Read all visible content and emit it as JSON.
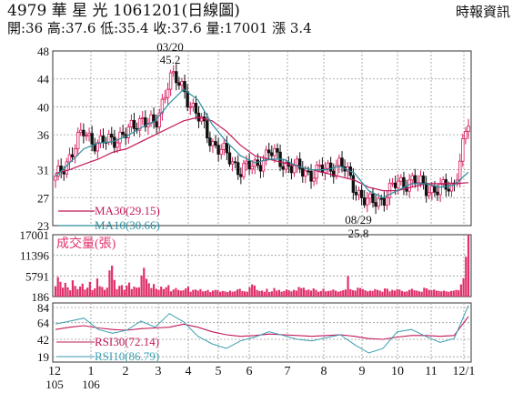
{
  "header": {
    "title": "4979 華 星 光 1061201(日線圖)",
    "source": "時報資訊",
    "stats": "開:36 高:37.6 低:35.4 收:37.6 量:17001 漲 3.4"
  },
  "colors": {
    "candle_up": "#d81b60",
    "candle_down": "#111111",
    "ma30": "#c2185b",
    "ma10": "#2a8fa0",
    "volume": "#e0306a",
    "rsi30": "#c2185b",
    "rsi10": "#3a9fb0"
  },
  "chart_data": [
    {
      "type": "candlestick",
      "title": "4979 華 星 光 1061201(日線圖)",
      "ylim": [
        23,
        48
      ],
      "yticks": [
        "48",
        "44",
        "40",
        "36",
        "31",
        "27",
        "23"
      ],
      "ytick_values": [
        48,
        44,
        40,
        36,
        31,
        27,
        23
      ],
      "x_month_labels": [
        "12",
        "1",
        "2",
        "3",
        "4",
        "5",
        "6",
        "7",
        "8",
        "9",
        "10",
        "11",
        "12/1"
      ],
      "x_year_labels": [
        "105",
        "106"
      ],
      "legend": [
        "MA30(29.15)",
        "MA10(30.66)"
      ],
      "annotations": [
        {
          "date": "03/20",
          "value": "45.2"
        },
        {
          "date": "08/29",
          "value": "25.8"
        }
      ],
      "close_series": [
        {
          "month": "12",
          "close": 29.5
        },
        {
          "month": "12",
          "close": 33.0
        },
        {
          "month": "12",
          "close": 36.5
        },
        {
          "month": "1",
          "close": 34.5
        },
        {
          "month": "1",
          "close": 35.5
        },
        {
          "month": "2",
          "close": 36.0
        },
        {
          "month": "2",
          "close": 38.5
        },
        {
          "month": "3",
          "close": 37.0
        },
        {
          "month": "3",
          "close": 44.5
        },
        {
          "month": "3",
          "close": 42.5
        },
        {
          "month": "4",
          "close": 38.5
        },
        {
          "month": "4",
          "close": 35.0
        },
        {
          "month": "4",
          "close": 33.0
        },
        {
          "month": "5",
          "close": 31.0
        },
        {
          "month": "5",
          "close": 31.5
        },
        {
          "month": "6",
          "close": 33.5
        },
        {
          "month": "6",
          "close": 32.0
        },
        {
          "month": "7",
          "close": 31.0
        },
        {
          "month": "7",
          "close": 30.5
        },
        {
          "month": "8",
          "close": 31.0
        },
        {
          "month": "8",
          "close": 32.0
        },
        {
          "month": "8",
          "close": 28.5
        },
        {
          "month": "9",
          "close": 26.0
        },
        {
          "month": "9",
          "close": 27.0
        },
        {
          "month": "10",
          "close": 29.0
        },
        {
          "month": "10",
          "close": 29.5
        },
        {
          "month": "11",
          "close": 28.5
        },
        {
          "month": "11",
          "close": 28.0
        },
        {
          "month": "11",
          "close": 29.0
        },
        {
          "month": "12/1",
          "close": 37.6
        }
      ],
      "ma30": [
        30.5,
        31.0,
        31.8,
        32.5,
        33.5,
        34.0,
        35.0,
        36.0,
        37.0,
        38.0,
        38.5,
        38.0,
        36.5,
        34.5,
        33.0,
        32.5,
        32.0,
        31.5,
        31.0,
        30.5,
        30.0,
        29.5,
        28.5,
        28.0,
        28.0,
        28.5,
        29.0,
        29.0,
        29.0,
        29.15
      ],
      "ma10": [
        30.0,
        32.0,
        34.0,
        34.8,
        35.0,
        35.8,
        37.0,
        38.0,
        40.5,
        42.5,
        41.0,
        37.5,
        35.0,
        33.0,
        32.0,
        32.5,
        32.5,
        31.5,
        31.0,
        31.0,
        31.5,
        30.5,
        28.0,
        27.0,
        28.0,
        29.0,
        29.0,
        28.5,
        28.8,
        30.66
      ]
    },
    {
      "type": "bar",
      "title": "成交量(張)",
      "yticks": [
        "17001",
        "11396",
        "5791",
        "186"
      ],
      "ytick_values": [
        17001,
        11396,
        5791,
        186
      ],
      "ylim": [
        186,
        17001
      ],
      "values": [
        3000,
        5500,
        4200,
        2600,
        3900,
        2700,
        1900,
        4600,
        3100,
        2200,
        2900,
        3700,
        2100,
        2600,
        4200,
        1900,
        2400,
        5100,
        3000,
        2800,
        2000,
        2600,
        7300,
        8600,
        4700,
        2200,
        3100,
        3300,
        2000,
        3200,
        4000,
        2200,
        2900,
        2600,
        2700,
        5900,
        8000,
        5000,
        3800,
        2500,
        3600,
        2300,
        2000,
        2900,
        2200,
        2700,
        3300,
        1600,
        2100,
        2500,
        2000,
        1800,
        1900,
        2400,
        2900,
        1500,
        2000,
        2100,
        1800,
        2200,
        1600,
        1700,
        2000,
        1400,
        1800,
        2000,
        1900,
        1500,
        1700,
        1600,
        1400,
        1800,
        1500,
        1600,
        2100,
        2300,
        1700,
        1600,
        1500,
        2700,
        3500,
        3200,
        2000,
        1700,
        1800,
        1500,
        2300,
        1400,
        1600,
        2500,
        1800,
        2000,
        1500,
        1700,
        2100,
        1900,
        1600,
        2000,
        1800,
        2800,
        2500,
        2600,
        1900,
        2100,
        1800,
        2400,
        2000,
        1500,
        1700,
        2300,
        1600,
        1700,
        1800,
        2100,
        1800,
        1500,
        1700,
        1900,
        2100,
        5800,
        2200,
        1900,
        1800,
        2600,
        2500,
        2200,
        1900,
        1600,
        1800,
        1700,
        2200,
        2000,
        1800,
        1500,
        2400,
        2300,
        1600,
        2000,
        1800,
        2200,
        2100,
        1700,
        1500,
        1600,
        2000,
        2300,
        1900,
        1800,
        1600,
        1500,
        2600,
        2400,
        2000,
        1900,
        2100,
        1800,
        1700,
        1600,
        1800,
        1600,
        1500,
        1700,
        1800,
        2000,
        1900,
        3500,
        5200,
        11000,
        17001
      ]
    },
    {
      "type": "line",
      "title": "",
      "yticks": [
        "84",
        "64",
        "42",
        "19"
      ],
      "ytick_values": [
        84,
        64,
        42,
        19
      ],
      "ylim": [
        12,
        90
      ],
      "legend": [
        "RSI30(72.14)",
        "RSI10(86.79)"
      ],
      "series": [
        {
          "name": "RSI30",
          "values": [
            55,
            58,
            60,
            57,
            55,
            54,
            56,
            57,
            58,
            62,
            58,
            52,
            48,
            46,
            47,
            49,
            48,
            47,
            46,
            47,
            48,
            46,
            43,
            42,
            45,
            47,
            47,
            46,
            47,
            72.14
          ]
        },
        {
          "name": "RSI10",
          "values": [
            62,
            66,
            70,
            55,
            50,
            54,
            66,
            58,
            76,
            65,
            46,
            36,
            30,
            40,
            45,
            52,
            47,
            42,
            40,
            44,
            48,
            35,
            24,
            30,
            52,
            55,
            46,
            38,
            43,
            86.79
          ]
        }
      ]
    }
  ]
}
